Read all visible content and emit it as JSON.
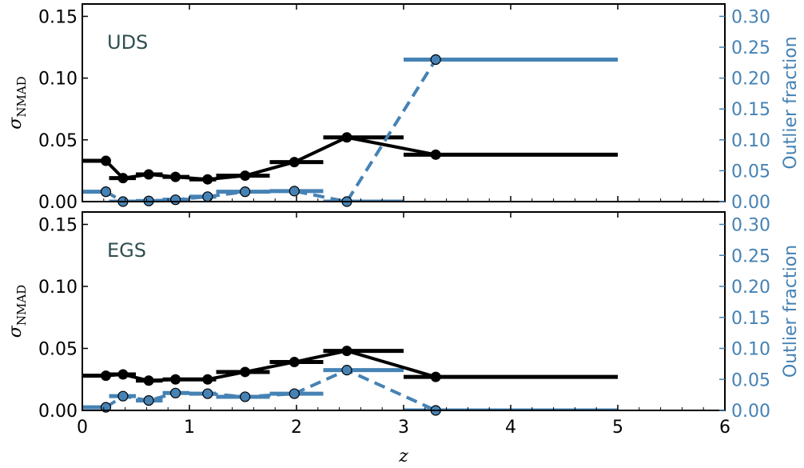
{
  "chart_data": [
    {
      "type": "line",
      "panel_label": "UDS",
      "xlabel": "z",
      "ylabel": "σ_NMAD",
      "ylabel_main": "σ",
      "ylabel_sub": "NMAD",
      "y2label": "Outlier fraction",
      "xlim": [
        0,
        6
      ],
      "ylim": [
        0,
        0.16
      ],
      "y2lim": [
        0,
        0.32
      ],
      "xticks": [
        "0",
        "1",
        "2",
        "3",
        "4",
        "5",
        "6"
      ],
      "yticks": [
        "0.00",
        "0.05",
        "0.10",
        "0.15"
      ],
      "y2ticks": [
        "0.00",
        "0.05",
        "0.10",
        "0.15",
        "0.20",
        "0.25",
        "0.30"
      ],
      "colors": {
        "sigma": "#000000",
        "outlier": "#4682b4",
        "panel_text": "#2f4f4f"
      },
      "series": [
        {
          "name": "σ_NMAD",
          "axis": "left",
          "style": "solid",
          "bins": [
            [
              0.0,
              0.25
            ],
            [
              0.25,
              0.5
            ],
            [
              0.5,
              0.75
            ],
            [
              0.75,
              1.0
            ],
            [
              1.0,
              1.25
            ],
            [
              1.25,
              1.75
            ],
            [
              1.75,
              2.25
            ],
            [
              2.25,
              3.0
            ],
            [
              3.0,
              5.0
            ]
          ],
          "x": [
            0.22,
            0.38,
            0.62,
            0.87,
            1.17,
            1.52,
            1.98,
            2.47,
            3.3
          ],
          "values": [
            0.033,
            0.019,
            0.022,
            0.02,
            0.018,
            0.021,
            0.032,
            0.052,
            0.038
          ]
        },
        {
          "name": "Outlier fraction",
          "axis": "right",
          "style": "dashed",
          "bins": [
            [
              0.0,
              0.25
            ],
            [
              0.25,
              0.5
            ],
            [
              0.5,
              0.75
            ],
            [
              0.75,
              1.0
            ],
            [
              1.0,
              1.25
            ],
            [
              1.25,
              1.75
            ],
            [
              1.75,
              2.25
            ],
            [
              2.25,
              3.0
            ],
            [
              3.0,
              5.0
            ]
          ],
          "x": [
            0.22,
            0.38,
            0.62,
            0.87,
            1.17,
            1.52,
            1.98,
            2.47,
            3.3
          ],
          "values": [
            0.016,
            0.0,
            0.001,
            0.003,
            0.008,
            0.016,
            0.017,
            0.0,
            0.23
          ]
        }
      ]
    },
    {
      "type": "line",
      "panel_label": "EGS",
      "xlabel": "z",
      "ylabel": "σ_NMAD",
      "ylabel_main": "σ",
      "ylabel_sub": "NMAD",
      "y2label": "Outlier fraction",
      "xlim": [
        0,
        6
      ],
      "ylim": [
        0,
        0.16
      ],
      "y2lim": [
        0,
        0.32
      ],
      "xticks": [
        "0",
        "1",
        "2",
        "3",
        "4",
        "5",
        "6"
      ],
      "yticks": [
        "0.00",
        "0.05",
        "0.10",
        "0.15"
      ],
      "y2ticks": [
        "0.00",
        "0.05",
        "0.10",
        "0.15",
        "0.20",
        "0.25",
        "0.30"
      ],
      "colors": {
        "sigma": "#000000",
        "outlier": "#4682b4",
        "panel_text": "#2f4f4f"
      },
      "series": [
        {
          "name": "σ_NMAD",
          "axis": "left",
          "style": "solid",
          "bins": [
            [
              0.0,
              0.25
            ],
            [
              0.25,
              0.5
            ],
            [
              0.5,
              0.75
            ],
            [
              0.75,
              1.0
            ],
            [
              1.0,
              1.25
            ],
            [
              1.25,
              1.75
            ],
            [
              1.75,
              2.25
            ],
            [
              2.25,
              3.0
            ],
            [
              3.0,
              5.0
            ]
          ],
          "x": [
            0.22,
            0.38,
            0.62,
            0.87,
            1.17,
            1.52,
            1.98,
            2.47,
            3.3
          ],
          "values": [
            0.028,
            0.029,
            0.024,
            0.025,
            0.025,
            0.031,
            0.039,
            0.048,
            0.027
          ]
        },
        {
          "name": "Outlier fraction",
          "axis": "right",
          "style": "dashed",
          "bins": [
            [
              0.0,
              0.25
            ],
            [
              0.25,
              0.5
            ],
            [
              0.5,
              0.75
            ],
            [
              0.75,
              1.0
            ],
            [
              1.0,
              1.25
            ],
            [
              1.25,
              1.75
            ],
            [
              1.75,
              2.25
            ],
            [
              2.25,
              3.0
            ],
            [
              3.0,
              5.0
            ]
          ],
          "x": [
            0.22,
            0.38,
            0.62,
            0.87,
            1.17,
            1.52,
            1.98,
            2.47,
            3.3
          ],
          "values": [
            0.005,
            0.023,
            0.016,
            0.028,
            0.027,
            0.022,
            0.027,
            0.065,
            0.0
          ]
        }
      ]
    }
  ]
}
